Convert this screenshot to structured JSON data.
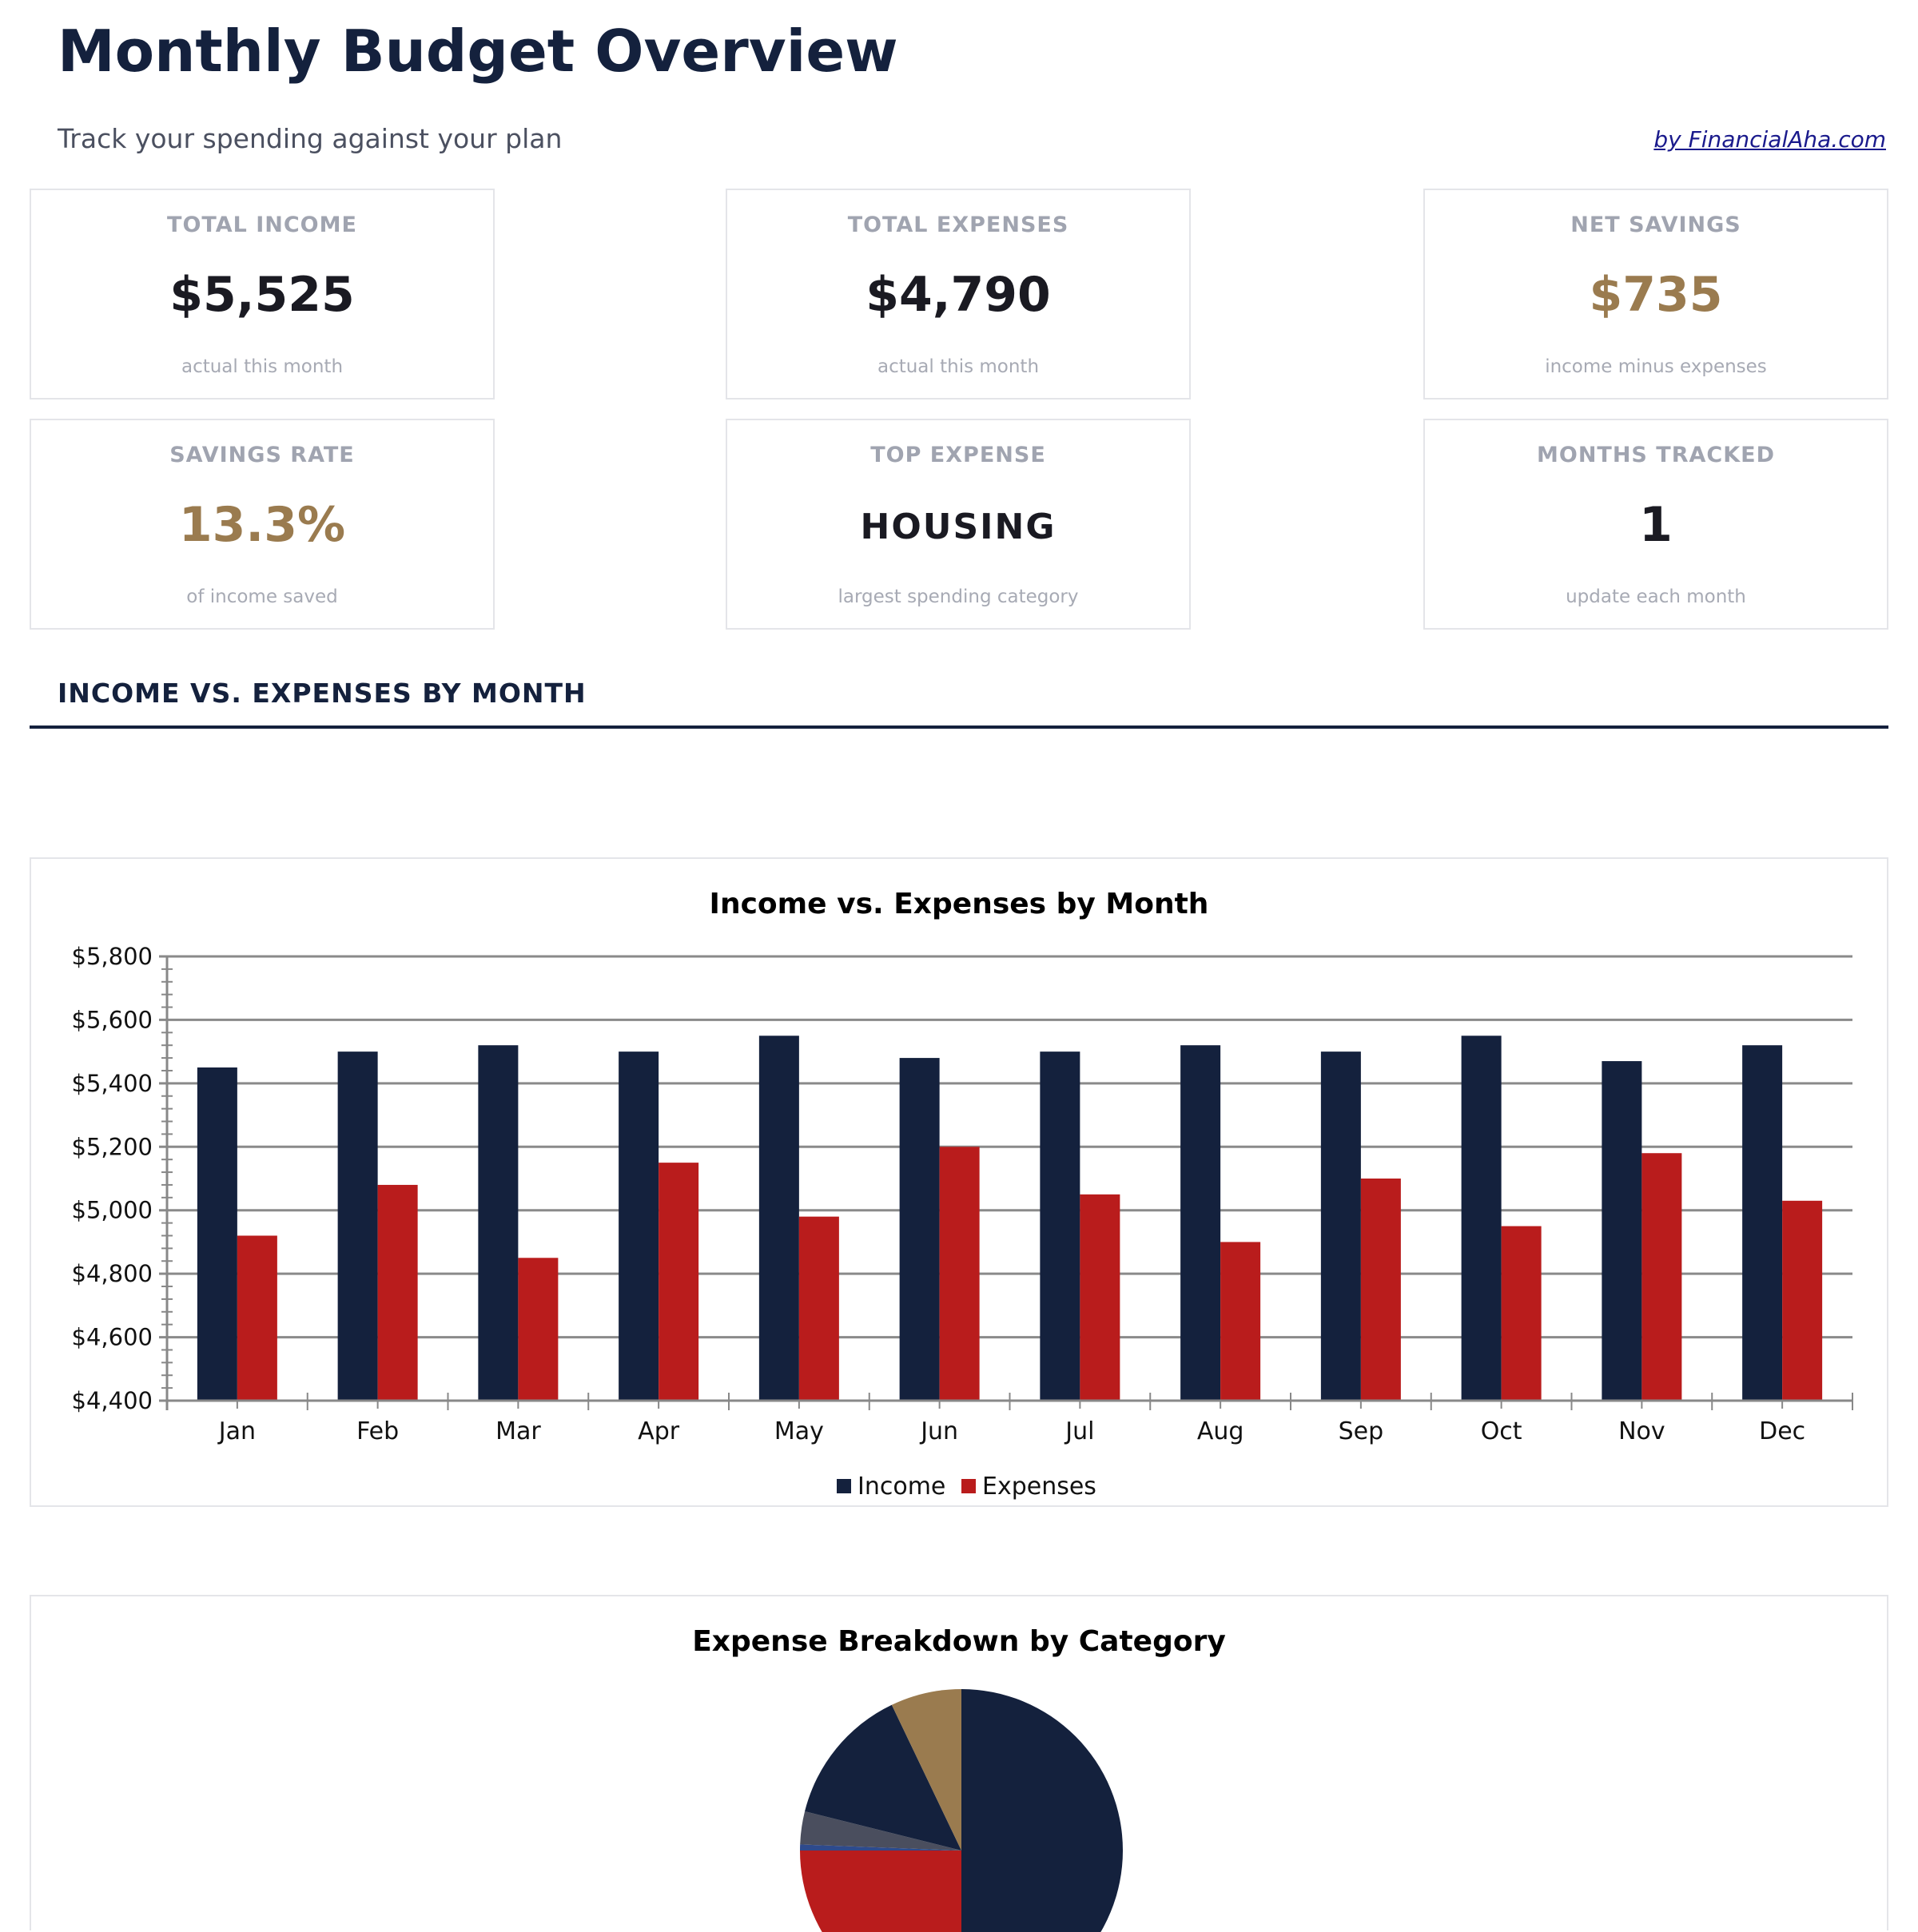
{
  "header": {
    "title": "Monthly Budget Overview",
    "subtitle": "Track your spending against your plan",
    "brand_link": "by FinancialAha.com"
  },
  "cards": [
    {
      "label": "TOTAL INCOME",
      "value": "$5,525",
      "sub": "actual this month",
      "color": "#1a1a22"
    },
    {
      "label": "TOTAL EXPENSES",
      "value": "$4,790",
      "sub": "actual this month",
      "color": "#1a1a22"
    },
    {
      "label": "NET SAVINGS",
      "value": "$735",
      "sub": "income minus expenses",
      "color": "#9a7b4f"
    },
    {
      "label": "SAVINGS RATE",
      "value": "13.3%",
      "sub": "of income saved",
      "color": "#9a7b4f"
    },
    {
      "label": "TOP EXPENSE",
      "value": "HOUSING",
      "sub": "largest spending category",
      "color": "#1a1a22"
    },
    {
      "label": "MONTHS TRACKED",
      "value": "1",
      "sub": "update each month",
      "color": "#1a1a22"
    }
  ],
  "section": {
    "heading": "INCOME VS. EXPENSES BY MONTH"
  },
  "chart_data": [
    {
      "type": "bar",
      "title": "Income vs. Expenses by Month",
      "categories": [
        "Jan",
        "Feb",
        "Mar",
        "Apr",
        "May",
        "Jun",
        "Jul",
        "Aug",
        "Sep",
        "Oct",
        "Nov",
        "Dec"
      ],
      "series": [
        {
          "name": "Income",
          "color": "#14213d",
          "values": [
            5450,
            5500,
            5520,
            5500,
            5550,
            5480,
            5500,
            5520,
            5500,
            5550,
            5470,
            5520
          ]
        },
        {
          "name": "Expenses",
          "color": "#b91c1c",
          "values": [
            4920,
            5080,
            4850,
            5150,
            4980,
            5200,
            5050,
            4900,
            5100,
            4950,
            5180,
            5030
          ]
        }
      ],
      "ylim": [
        4400,
        5800
      ],
      "yticks": [
        "$4,400",
        "$4,600",
        "$4,800",
        "$5,000",
        "$5,200",
        "$5,400",
        "$5,600",
        "$5,800"
      ],
      "grid": true,
      "legend": "bottom"
    },
    {
      "type": "pie",
      "title": "Expense Breakdown by Category",
      "values": [
        50,
        25,
        0.6,
        3.3,
        14,
        7.1
      ],
      "colors": [
        "#14213d",
        "#b91c1c",
        "#2e4a8c",
        "#4a4e5e",
        "#14213d",
        "#9a7b4f"
      ]
    }
  ]
}
